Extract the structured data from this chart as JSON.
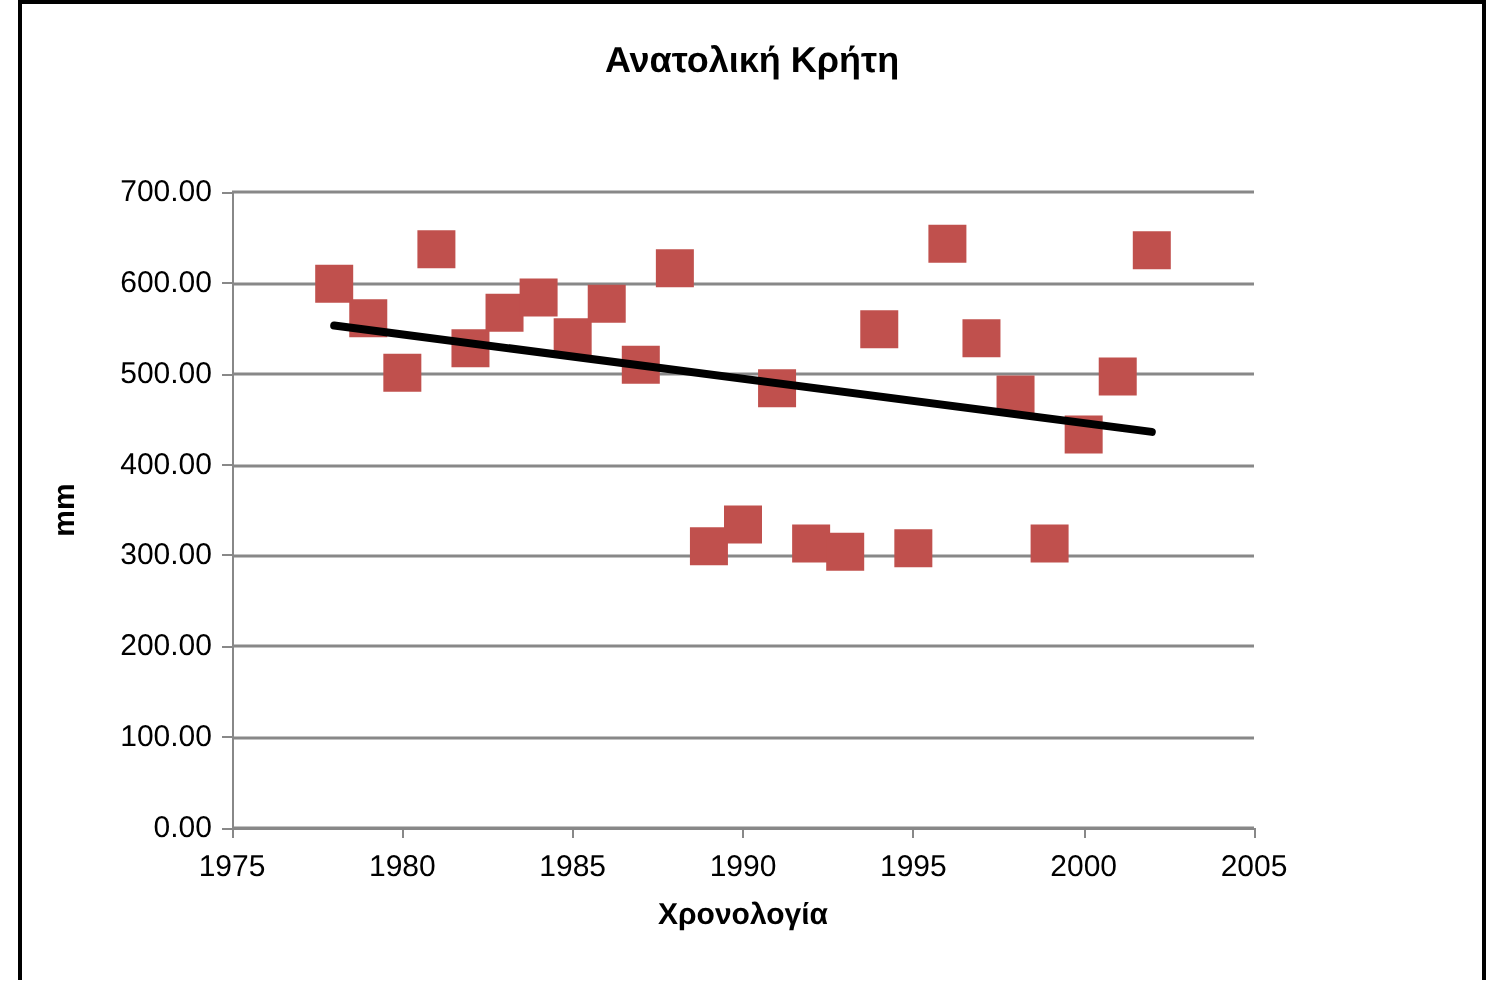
{
  "chart_data": {
    "type": "scatter",
    "title": "Ανατολική Κρήτη",
    "xlabel": "Χρονολογία",
    "ylabel": "mm",
    "x": [
      1978,
      1979,
      1980,
      1981,
      1982,
      1983,
      1984,
      1985,
      1986,
      1987,
      1988,
      1989,
      1990,
      1991,
      1992,
      1993,
      1994,
      1995,
      1996,
      1997,
      1998,
      1999,
      2000,
      2001,
      2002
    ],
    "series": [
      {
        "color": "#c0504d",
        "marker": "square",
        "values": [
          599,
          561,
          501,
          637,
          528,
          567,
          584,
          540,
          577,
          510,
          616,
          310,
          334,
          484,
          313,
          304,
          549,
          308,
          643,
          539,
          477,
          313,
          433,
          497,
          636
        ]
      },
      {
        "type": "line",
        "color": "#000000",
        "marker": "none",
        "line_style": "solid",
        "x": [
          1978,
          2002
        ],
        "values": [
          553,
          436
        ]
      }
    ],
    "xlim": [
      1975,
      2005
    ],
    "xticks": [
      1975,
      1980,
      1985,
      1990,
      1995,
      2000,
      2005
    ],
    "ylim": [
      0,
      700
    ],
    "yticks": [
      {
        "value": 0,
        "label": "0.00"
      },
      {
        "value": 100,
        "label": "100.00"
      },
      {
        "value": 200,
        "label": "200.00"
      },
      {
        "value": 300,
        "label": "300.00"
      },
      {
        "value": 400,
        "label": "400.00"
      },
      {
        "value": 500,
        "label": "500.00"
      },
      {
        "value": 600,
        "label": "600.00"
      },
      {
        "value": 700,
        "label": "700.00"
      }
    ],
    "grid": "y"
  }
}
